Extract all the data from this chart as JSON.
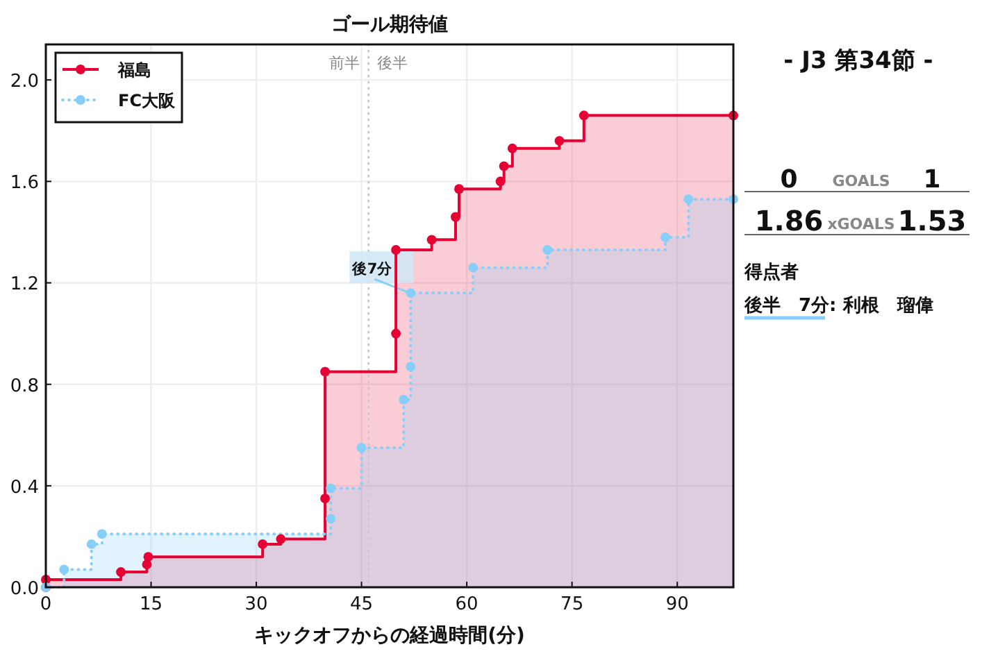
{
  "chart_data": [
    {
      "type": "step",
      "title": "ゴール期待値",
      "xlabel": "キックオフからの経過時間(分)",
      "series": [
        {
          "name": "福島",
          "color": "#e60033",
          "line_style": "solid",
          "x": [
            0,
            0,
            10.7,
            14.4,
            14.6,
            30.9,
            33.5,
            39.8,
            39.8,
            49.9,
            49.9,
            55.0,
            58.4,
            58.9,
            64.8,
            65.3,
            66.5,
            73.2,
            76.7,
            98
          ],
          "values": [
            0,
            0.03,
            0.06,
            0.09,
            0.12,
            0.17,
            0.19,
            0.35,
            0.85,
            1.0,
            1.33,
            1.37,
            1.46,
            1.57,
            1.6,
            1.66,
            1.73,
            1.76,
            1.86,
            1.86
          ]
        },
        {
          "name": "FC大阪",
          "color": "#87cefa",
          "line_style": "dotted",
          "x": [
            0,
            2.6,
            6.5,
            8.0,
            40.6,
            40.6,
            45.0,
            51.0,
            52.0,
            52.0,
            60.9,
            71.5,
            88.3,
            91.6,
            98
          ],
          "values": [
            0,
            0.07,
            0.17,
            0.21,
            0.27,
            0.39,
            0.55,
            0.74,
            0.87,
            1.16,
            1.26,
            1.33,
            1.38,
            1.53,
            1.53
          ]
        }
      ],
      "xlim": [
        0,
        98
      ],
      "xticks": [
        0,
        15,
        30,
        45,
        60,
        75,
        90
      ],
      "ylim": [
        0,
        2.14
      ],
      "yticks": [
        {
          "value": 0,
          "label": "0.0"
        },
        {
          "value": 0.4,
          "label": "0.4"
        },
        {
          "value": 0.8,
          "label": "0.8"
        },
        {
          "value": 1.2,
          "label": "1.2"
        },
        {
          "value": 1.6,
          "label": "1.6"
        },
        {
          "value": 2.0,
          "label": "2.0"
        }
      ],
      "grid": true,
      "legend": "top left",
      "marker": "circle",
      "ref_lines": [
        {
          "axis": "x",
          "value": 46,
          "label": "前半 後半",
          "color": "#c8c8c8",
          "line_style": "dotted"
        }
      ],
      "annotations": [
        {
          "text": "後7分",
          "x": 52,
          "y": 1.16
        }
      ]
    },
    {
      "type": "other",
      "title": "- J3 第34節 -",
      "annotations": [
        "0",
        "GOALS",
        "1",
        "1.86",
        "xGOALS",
        "1.53",
        "得点者",
        "後半　7分: 利根　瑠偉"
      ]
    }
  ]
}
